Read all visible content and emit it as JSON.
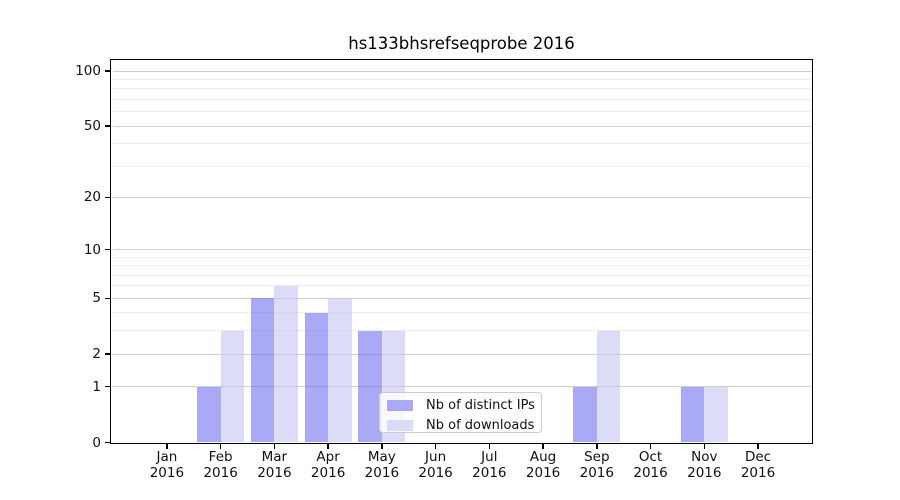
{
  "figure": {
    "background": "#ffffff"
  },
  "chart_data": {
    "type": "bar",
    "title": "hs133bhsrefseqprobe 2016",
    "yscale": "log1p",
    "ylim": [
      0,
      115
    ],
    "grid": true,
    "categories": [
      "Jan",
      "Feb",
      "Mar",
      "Apr",
      "May",
      "Jun",
      "Jul",
      "Aug",
      "Sep",
      "Oct",
      "Nov",
      "Dec"
    ],
    "category_year": "2016",
    "series": [
      {
        "name": "Nb of distinct IPs",
        "color": "#a9a9f6",
        "fill": "rgba(112,112,240,0.6)",
        "values": [
          0,
          1,
          5,
          4,
          3,
          0,
          0,
          0,
          1,
          0,
          1,
          0
        ]
      },
      {
        "name": "Nb of downloads",
        "color": "#dbdbf8",
        "fill": "rgba(196,196,244,0.6)",
        "values": [
          0,
          3,
          6,
          5,
          3,
          0,
          0,
          0,
          3,
          0,
          1,
          0
        ]
      }
    ],
    "y_major_ticks": [
      100,
      50,
      20,
      10,
      5,
      2,
      1,
      0
    ],
    "y_minor_gridlines": [
      3,
      4,
      6,
      7,
      8,
      9,
      30,
      40,
      60,
      70,
      80,
      90
    ],
    "legend": {
      "position": "lower center-right",
      "entries": [
        "Nb of distinct IPs",
        "Nb of downloads"
      ]
    },
    "colors": {
      "grid_major": "#cfcfcf",
      "grid_minor": "#ededed",
      "spine": "#000000",
      "text": "#111111"
    }
  }
}
